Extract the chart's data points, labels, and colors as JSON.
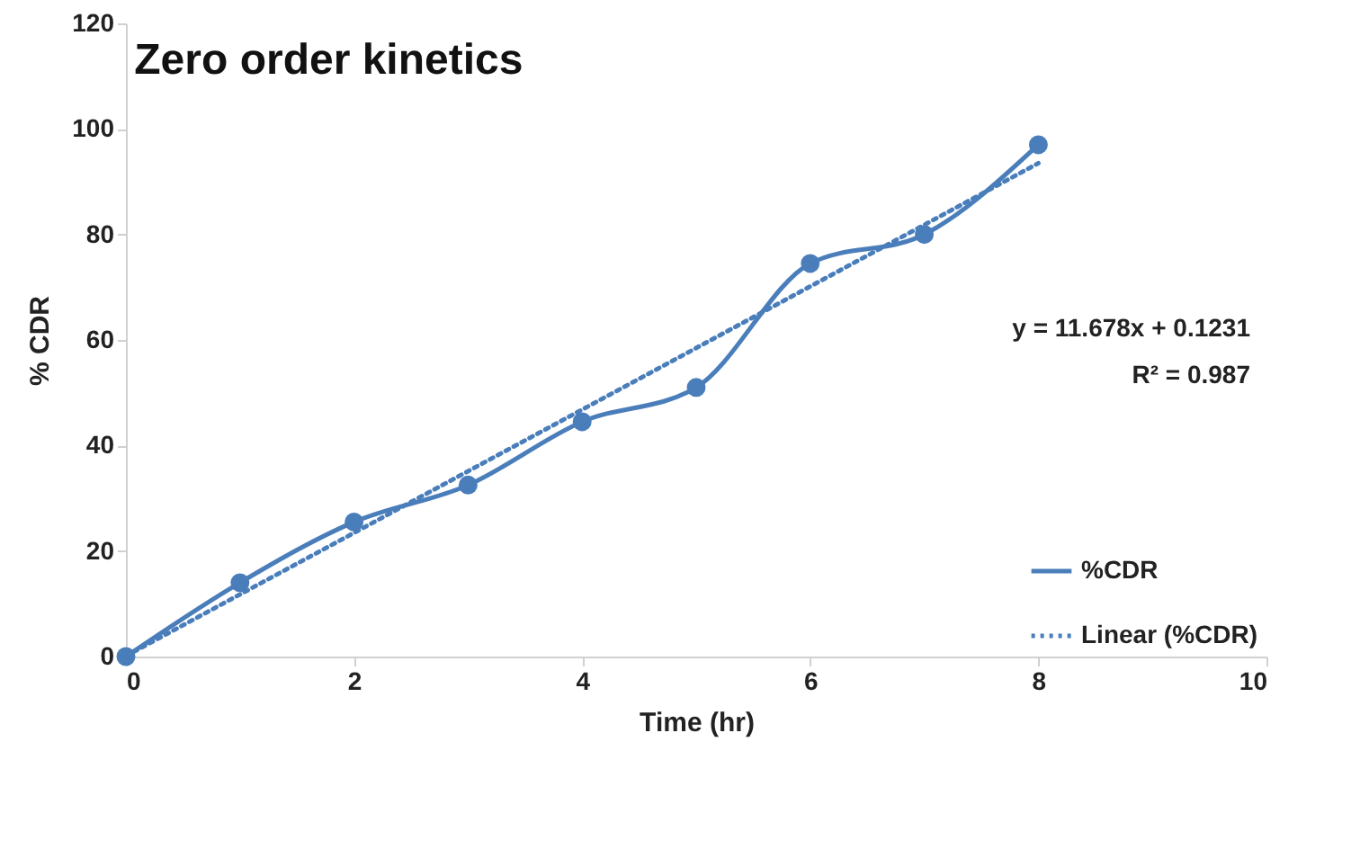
{
  "chart_data": {
    "type": "line",
    "title": "Zero order kinetics",
    "xlabel": "Time (hr)",
    "ylabel": "% CDR",
    "x": [
      0,
      1,
      2,
      3,
      4,
      5,
      6,
      7,
      8
    ],
    "series": [
      {
        "name": "%CDR",
        "color": "#4a7ebb",
        "values": [
          0,
          14,
          25.5,
          32.5,
          44.5,
          51,
          74.5,
          80,
          97
        ],
        "line_style": "solid",
        "marker": "circle"
      },
      {
        "name": "Linear (%CDR)",
        "type": "line",
        "color": "#4a7ebb",
        "x": [
          0,
          8
        ],
        "values": [
          0.1,
          93.5
        ],
        "line_style": "dotted"
      }
    ],
    "annotations": [
      "y = 11.678x + 0.1231",
      "R² = 0.987"
    ],
    "xlim": [
      0,
      10
    ],
    "xticks": [
      0,
      2,
      4,
      6,
      8,
      10
    ],
    "ylim": [
      0,
      120
    ],
    "yticks": [
      0,
      20,
      40,
      60,
      80,
      100,
      120
    ],
    "grid": false,
    "legend": "bottom right"
  }
}
